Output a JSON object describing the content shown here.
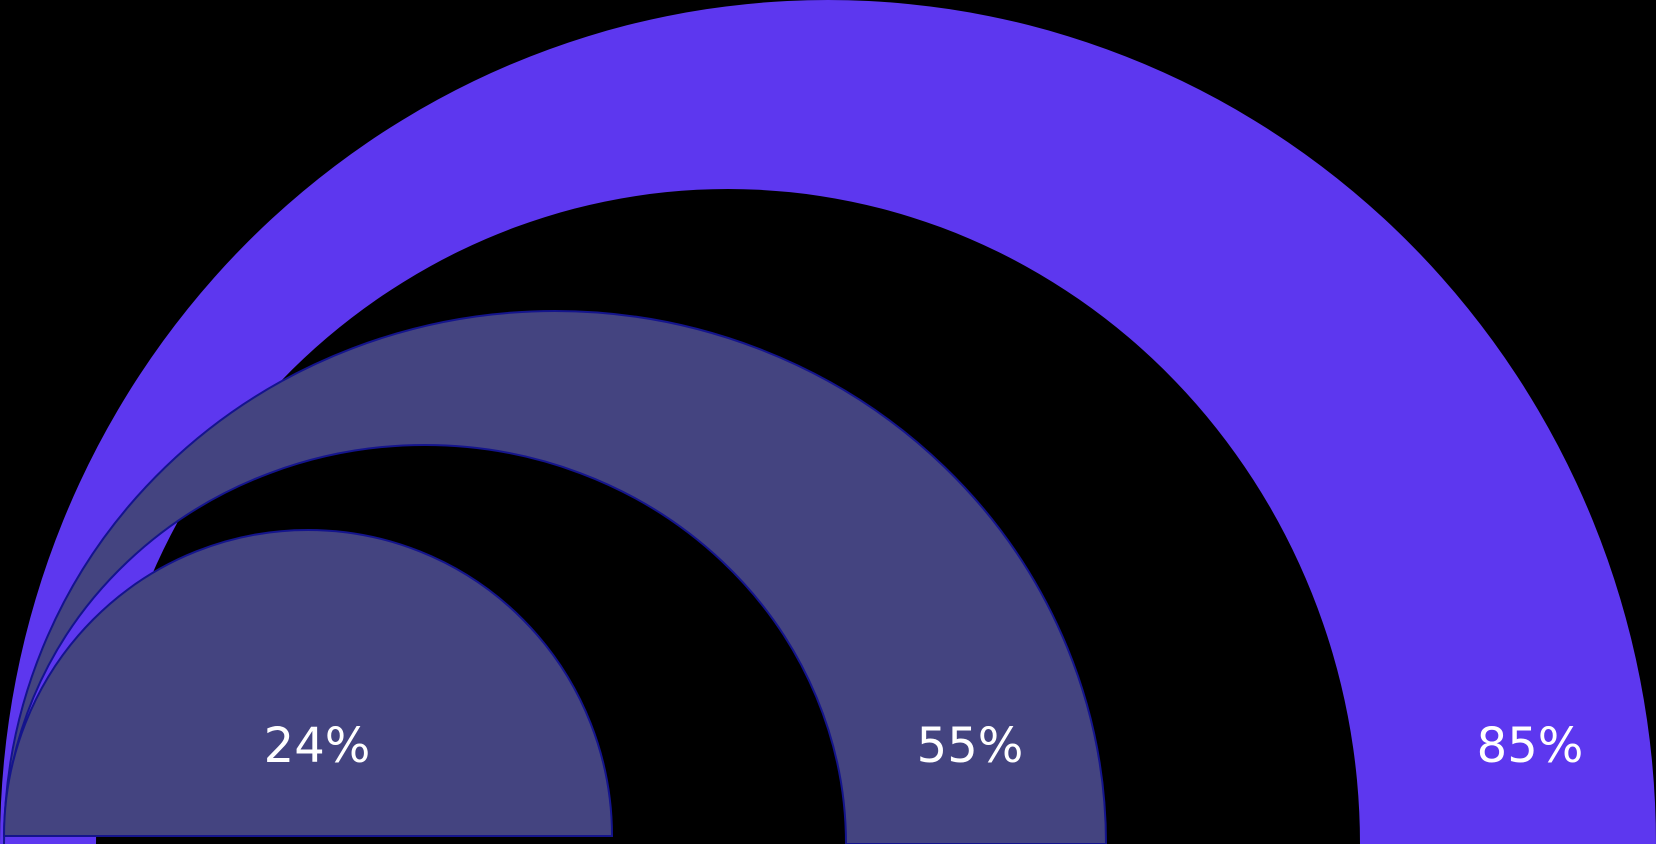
{
  "colors": {
    "background": "#000000",
    "highlight": "#5d37ef",
    "muted": "#444480",
    "outline": "#14148c",
    "label": "#ffffff"
  },
  "chart_data": {
    "type": "semicircular-bar",
    "title": "",
    "values": [
      24,
      55,
      85
    ],
    "labels": [
      "24%",
      "55%",
      "85%"
    ],
    "highlight": [
      false,
      false,
      true
    ],
    "unit": "%"
  }
}
